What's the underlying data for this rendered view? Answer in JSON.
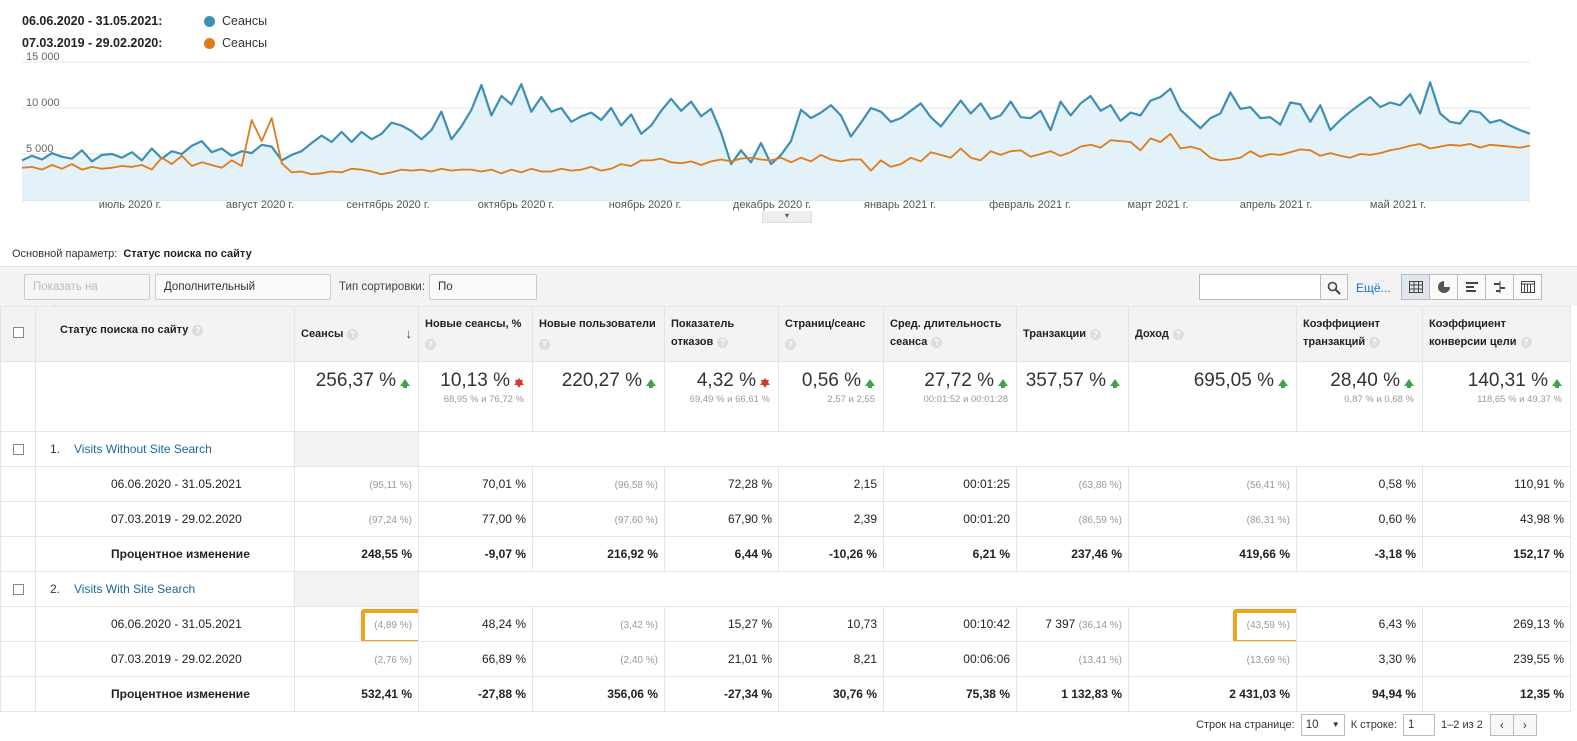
{
  "legend": {
    "current": {
      "range": "06.06.2020 - 31.05.2021:",
      "name": "Сеансы",
      "color": "#3d8fb3"
    },
    "previous": {
      "range": "07.03.2019 - 29.02.2020:",
      "name": "Сеансы",
      "color": "#e07b1a"
    }
  },
  "chart_data": {
    "type": "line",
    "y_ticks": [
      "15 000",
      "10 000",
      "5 000"
    ],
    "ylim": [
      0,
      15000
    ],
    "x_ticks": [
      "июль 2020 г.",
      "август 2020 г.",
      "сентябрь 2020 г.",
      "октябрь 2020 г.",
      "ноябрь 2020 г.",
      "декабрь 2020 г.",
      "январь 2021 г.",
      "февраль 2021 г.",
      "март 2021 г.",
      "апрель 2021 г.",
      "май 2021 г."
    ],
    "series": [
      {
        "name": "Сеансы",
        "color": "#3d8fb3",
        "values": [
          4300,
          4800,
          4400,
          5100,
          4700,
          4500,
          5400,
          4200,
          4900,
          5000,
          4600,
          5200,
          4300,
          5600,
          4500,
          5300,
          5000,
          5900,
          6400,
          5200,
          5600,
          4800,
          5300,
          5100,
          6000,
          5800,
          4300,
          4900,
          5300,
          6200,
          7000,
          6300,
          7400,
          6300,
          7400,
          6600,
          7200,
          8400,
          8100,
          7500,
          6600,
          7600,
          9600,
          6600,
          8000,
          9800,
          12500,
          9200,
          11300,
          10400,
          12600,
          9600,
          11200,
          9600,
          10000,
          8500,
          9100,
          9500,
          8700,
          10000,
          8100,
          9300,
          7200,
          8100,
          9700,
          11000,
          9700,
          10700,
          9100,
          9900,
          7300,
          3900,
          5400,
          4100,
          6200,
          3900,
          4900,
          6400,
          9800,
          8900,
          9500,
          10300,
          9200,
          6900,
          8400,
          10000,
          9600,
          8500,
          8900,
          9700,
          10500,
          9000,
          8000,
          9400,
          10800,
          9400,
          10500,
          8800,
          9200,
          10700,
          9000,
          8900,
          9700,
          7600,
          10700,
          9200,
          10500,
          11300,
          9700,
          10300,
          8600,
          9500,
          9200,
          10800,
          11200,
          12100,
          9800,
          8800,
          7800,
          8900,
          9400,
          11700,
          9900,
          10100,
          8900,
          9000,
          8200,
          10600,
          10400,
          8500,
          10300,
          7600,
          8700,
          9600,
          10400,
          11200,
          10100,
          10600,
          10300,
          11500,
          9400,
          12800,
          9400,
          8500,
          8300,
          9700,
          9500,
          8400,
          8700,
          8100,
          7600,
          7200
        ]
      },
      {
        "name": "Сеансы",
        "color": "#e07b1a",
        "values": [
          3500,
          3600,
          3300,
          3800,
          3400,
          3900,
          3300,
          3600,
          3400,
          3500,
          3700,
          3600,
          3800,
          3300,
          4600,
          3900,
          4800,
          3700,
          4100,
          3800,
          3500,
          4300,
          3700,
          8700,
          6400,
          8900,
          4000,
          3000,
          3100,
          2800,
          2900,
          3100,
          3000,
          3400,
          3300,
          3100,
          2800,
          3000,
          3300,
          3200,
          3300,
          3100,
          3400,
          3200,
          3300,
          3300,
          3100,
          3300,
          2900,
          3300,
          3000,
          3400,
          3100,
          3100,
          3400,
          3200,
          3300,
          3600,
          3200,
          3400,
          3900,
          3700,
          4300,
          4300,
          4500,
          4100,
          4000,
          4200,
          3800,
          4200,
          4400,
          4200,
          4500,
          4600,
          4400,
          4300,
          4600,
          4100,
          4600,
          4200,
          4900,
          4400,
          4200,
          4400,
          4400,
          3200,
          4300,
          3600,
          3900,
          4600,
          4200,
          5200,
          4900,
          4600,
          5600,
          4600,
          4300,
          5300,
          4900,
          5300,
          5400,
          4700,
          5000,
          5300,
          4800,
          5200,
          5800,
          6000,
          5700,
          6500,
          6400,
          6300,
          5400,
          6700,
          6300,
          7200,
          5600,
          5800,
          5500,
          4600,
          4300,
          4400,
          4600,
          5300,
          4700,
          5000,
          4900,
          5200,
          5500,
          5400,
          4800,
          5100,
          4800,
          4600,
          5000,
          4900,
          5100,
          5400,
          5600,
          5900,
          6100,
          5600,
          5800,
          6000,
          5900,
          6100,
          5700,
          6000,
          5900,
          5800,
          5700,
          5900
        ]
      }
    ]
  },
  "collapse_glyph": "▾",
  "primary_dimension": {
    "label": "Основной параметр:",
    "value": "Статус поиска по сайту"
  },
  "toolbar": {
    "plot_rows": "Показать на графике",
    "secondary_dim": "Дополнительный параметр",
    "sort_label": "Тип сортировки:",
    "sort_value": "По умолчанию",
    "more": "Ещё...",
    "views": [
      "table-view-icon",
      "pie-view-icon",
      "performance-view-icon",
      "comparison-view-icon",
      "pivot-view-icon"
    ]
  },
  "table": {
    "headers": [
      {
        "line1": "Статус поиска по сайту",
        "line2": ""
      },
      {
        "line1": "Сеансы",
        "line2": ""
      },
      {
        "line1": "Новые сеансы, %",
        "line2": ""
      },
      {
        "line1": "Новые пользователи",
        "line2": ""
      },
      {
        "line1": "Показатель",
        "line2": "отказов"
      },
      {
        "line1": "Страниц/сеанс",
        "line2": ""
      },
      {
        "line1": "Сред. длительность",
        "line2": "сеанса"
      },
      {
        "line1": "Транзакции",
        "line2": ""
      },
      {
        "line1": "Доход",
        "line2": ""
      },
      {
        "line1": "Коэффициент",
        "line2": "транзакций"
      },
      {
        "line1": "Коэффициент",
        "line2": "конверсии цели"
      }
    ],
    "summary": [
      {
        "big": "256,37 %",
        "dir": "up",
        "sub": ""
      },
      {
        "big": "10,13 %",
        "dir": "down",
        "sub": "68,95 % и 76,72 %"
      },
      {
        "big": "220,27 %",
        "dir": "up",
        "sub": ""
      },
      {
        "big": "4,32 %",
        "dir": "down",
        "sub": "69,49 % и 66,61 %"
      },
      {
        "big": "0,56 %",
        "dir": "up",
        "sub": "2,57 и 2,55"
      },
      {
        "big": "27,72 %",
        "dir": "up",
        "sub": "00:01:52 и 00:01:28"
      },
      {
        "big": "357,57 %",
        "dir": "up",
        "sub": ""
      },
      {
        "big": "695,05 %",
        "dir": "up",
        "sub": ""
      },
      {
        "big": "28,40 %",
        "dir": "up",
        "sub": "0,87 % и 0,68 %"
      },
      {
        "big": "140,31 %",
        "dir": "up",
        "sub": "118,65 % и 49,37 %"
      }
    ],
    "groups": [
      {
        "index": "1.",
        "name": "Visits Without Site Search",
        "rows": [
          {
            "label": "06.06.2020 - 31.05.2021",
            "bold": false,
            "cells": [
              {
                "v": "",
                "m": "(95,11 %)"
              },
              {
                "v": "70,01 %",
                "m": ""
              },
              {
                "v": "",
                "m": "(96,58 %)"
              },
              {
                "v": "72,28 %",
                "m": ""
              },
              {
                "v": "2,15",
                "m": ""
              },
              {
                "v": "00:01:25",
                "m": ""
              },
              {
                "v": "",
                "m": "(63,86 %)"
              },
              {
                "v": "",
                "m": "(56,41 %)"
              },
              {
                "v": "0,58 %",
                "m": ""
              },
              {
                "v": "110,91 %",
                "m": ""
              }
            ]
          },
          {
            "label": "07.03.2019 - 29.02.2020",
            "bold": false,
            "cells": [
              {
                "v": "",
                "m": "(97,24 %)"
              },
              {
                "v": "77,00 %",
                "m": ""
              },
              {
                "v": "",
                "m": "(97,60 %)"
              },
              {
                "v": "67,90 %",
                "m": ""
              },
              {
                "v": "2,39",
                "m": ""
              },
              {
                "v": "00:01:20",
                "m": ""
              },
              {
                "v": "",
                "m": "(86,59 %)"
              },
              {
                "v": "",
                "m": "(86,31 %)"
              },
              {
                "v": "0,60 %",
                "m": ""
              },
              {
                "v": "43,98 %",
                "m": ""
              }
            ]
          },
          {
            "label": "Процентное изменение",
            "bold": true,
            "cells": [
              {
                "v": "248,55 %",
                "m": ""
              },
              {
                "v": "-9,07 %",
                "m": ""
              },
              {
                "v": "216,92 %",
                "m": ""
              },
              {
                "v": "6,44 %",
                "m": ""
              },
              {
                "v": "-10,26 %",
                "m": ""
              },
              {
                "v": "6,21 %",
                "m": ""
              },
              {
                "v": "237,46 %",
                "m": ""
              },
              {
                "v": "419,66 %",
                "m": ""
              },
              {
                "v": "-3,18 %",
                "m": ""
              },
              {
                "v": "152,17 %",
                "m": ""
              }
            ]
          }
        ]
      },
      {
        "index": "2.",
        "name": "Visits With Site Search",
        "rows": [
          {
            "label": "06.06.2020 - 31.05.2021",
            "bold": false,
            "cells": [
              {
                "v": "",
                "m": "(4,89 %)",
                "hl": true
              },
              {
                "v": "48,24 %",
                "m": ""
              },
              {
                "v": "",
                "m": "(3,42 %)"
              },
              {
                "v": "15,27 %",
                "m": ""
              },
              {
                "v": "10,73",
                "m": ""
              },
              {
                "v": "00:10:42",
                "m": ""
              },
              {
                "v": "7 397",
                "m": "(36,14 %)"
              },
              {
                "v": "",
                "m": "(43,59 %)",
                "hl": true
              },
              {
                "v": "6,43 %",
                "m": ""
              },
              {
                "v": "269,13 %",
                "m": ""
              }
            ]
          },
          {
            "label": "07.03.2019 - 29.02.2020",
            "bold": false,
            "cells": [
              {
                "v": "",
                "m": "(2,76 %)"
              },
              {
                "v": "66,89 %",
                "m": ""
              },
              {
                "v": "",
                "m": "(2,40 %)"
              },
              {
                "v": "21,01 %",
                "m": ""
              },
              {
                "v": "8,21",
                "m": ""
              },
              {
                "v": "00:06:06",
                "m": ""
              },
              {
                "v": "",
                "m": "(13,41 %)"
              },
              {
                "v": "",
                "m": "(13,69 %)"
              },
              {
                "v": "3,30 %",
                "m": ""
              },
              {
                "v": "239,55 %",
                "m": ""
              }
            ]
          },
          {
            "label": "Процентное изменение",
            "bold": true,
            "cells": [
              {
                "v": "532,41 %",
                "m": ""
              },
              {
                "v": "-27,88 %",
                "m": ""
              },
              {
                "v": "356,06 %",
                "m": ""
              },
              {
                "v": "-27,34 %",
                "m": ""
              },
              {
                "v": "30,76 %",
                "m": ""
              },
              {
                "v": "75,38 %",
                "m": ""
              },
              {
                "v": "1 132,83 %",
                "m": ""
              },
              {
                "v": "2 431,03 %",
                "m": ""
              },
              {
                "v": "94,94 %",
                "m": ""
              },
              {
                "v": "12,35 %",
                "m": ""
              }
            ]
          }
        ]
      }
    ]
  },
  "pagination": {
    "rows_label": "Строк на странице:",
    "rows_value": "10",
    "goto_label": "К строке:",
    "goto_value": "1",
    "range": "1–2 из 2",
    "prev": "‹",
    "next": "›"
  }
}
